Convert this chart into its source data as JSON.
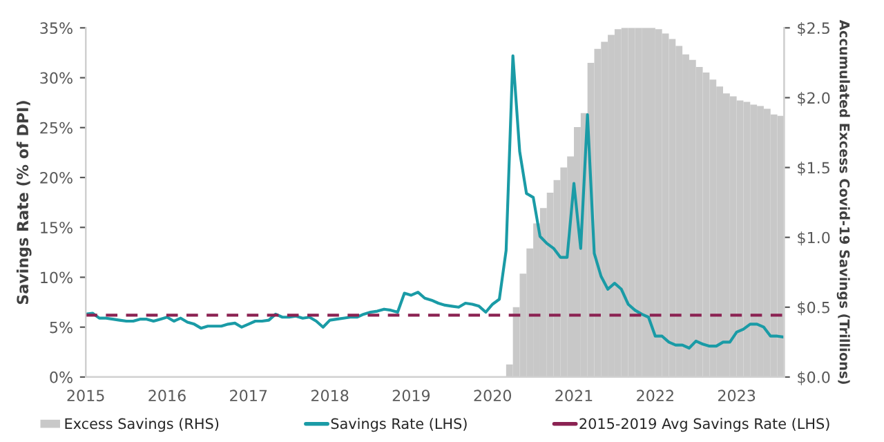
{
  "chart_data": {
    "type": "line",
    "ylabel": "Savings Rate (% of DPI)",
    "y2label": "Accumulated Excess Covid-19 Savings (Trillions)",
    "xlim": [
      "2015-01",
      "2023-08"
    ],
    "xticks": [
      "2015",
      "2016",
      "2017",
      "2018",
      "2019",
      "2020",
      "2021",
      "2022",
      "2023"
    ],
    "ylim": [
      0,
      35
    ],
    "yticks": [
      {
        "value": 0,
        "label": "0%"
      },
      {
        "value": 5,
        "label": "5%"
      },
      {
        "value": 10,
        "label": "10%"
      },
      {
        "value": 15,
        "label": "15%"
      },
      {
        "value": 20,
        "label": "20%"
      },
      {
        "value": 25,
        "label": "25%"
      },
      {
        "value": 30,
        "label": "30%"
      },
      {
        "value": 35,
        "label": "35%"
      }
    ],
    "y2lim": [
      0,
      2.5
    ],
    "y2ticks": [
      {
        "value": 0,
        "label": "$0.0"
      },
      {
        "value": 0.5,
        "label": "$0.5"
      },
      {
        "value": 1.0,
        "label": "$1.0"
      },
      {
        "value": 1.5,
        "label": "$1.5"
      },
      {
        "value": 2.0,
        "label": "$2.0"
      },
      {
        "value": 2.5,
        "label": "$2.5"
      }
    ],
    "grid": false,
    "legend": "bottom",
    "series": [
      {
        "name": "Excess Savings (RHS)",
        "type": "bar",
        "axis": "y2",
        "color": "#c8c8c8",
        "x": [
          "2020-03",
          "2020-04",
          "2020-05",
          "2020-06",
          "2020-07",
          "2020-08",
          "2020-09",
          "2020-10",
          "2020-11",
          "2020-12",
          "2021-01",
          "2021-02",
          "2021-03",
          "2021-04",
          "2021-05",
          "2021-06",
          "2021-07",
          "2021-08",
          "2021-09",
          "2021-10",
          "2021-11",
          "2021-12",
          "2022-01",
          "2022-02",
          "2022-03",
          "2022-04",
          "2022-05",
          "2022-06",
          "2022-07",
          "2022-08",
          "2022-09",
          "2022-10",
          "2022-11",
          "2022-12",
          "2023-01",
          "2023-02",
          "2023-03",
          "2023-04",
          "2023-05",
          "2023-06",
          "2023-07"
        ],
        "values": [
          0.09,
          0.5,
          0.74,
          0.92,
          1.1,
          1.21,
          1.32,
          1.41,
          1.5,
          1.58,
          1.79,
          1.89,
          2.25,
          2.35,
          2.4,
          2.45,
          2.49,
          2.5,
          2.5,
          2.5,
          2.5,
          2.5,
          2.49,
          2.46,
          2.42,
          2.37,
          2.31,
          2.27,
          2.22,
          2.18,
          2.13,
          2.08,
          2.03,
          2.01,
          1.98,
          1.97,
          1.95,
          1.94,
          1.92,
          1.88,
          1.87
        ]
      },
      {
        "name": "Savings Rate (LHS)",
        "color": "#1a9ba6",
        "x": [
          "2015-01",
          "2015-02",
          "2015-03",
          "2015-04",
          "2015-05",
          "2015-06",
          "2015-07",
          "2015-08",
          "2015-09",
          "2015-10",
          "2015-11",
          "2015-12",
          "2016-01",
          "2016-02",
          "2016-03",
          "2016-04",
          "2016-05",
          "2016-06",
          "2016-07",
          "2016-08",
          "2016-09",
          "2016-10",
          "2016-11",
          "2016-12",
          "2017-01",
          "2017-02",
          "2017-03",
          "2017-04",
          "2017-05",
          "2017-06",
          "2017-07",
          "2017-08",
          "2017-09",
          "2017-10",
          "2017-11",
          "2017-12",
          "2018-01",
          "2018-02",
          "2018-03",
          "2018-04",
          "2018-05",
          "2018-06",
          "2018-07",
          "2018-08",
          "2018-09",
          "2018-10",
          "2018-11",
          "2018-12",
          "2019-01",
          "2019-02",
          "2019-03",
          "2019-04",
          "2019-05",
          "2019-06",
          "2019-07",
          "2019-08",
          "2019-09",
          "2019-10",
          "2019-11",
          "2019-12",
          "2020-01",
          "2020-02",
          "2020-03",
          "2020-04",
          "2020-05",
          "2020-06",
          "2020-07",
          "2020-08",
          "2020-09",
          "2020-10",
          "2020-11",
          "2020-12",
          "2021-01",
          "2021-02",
          "2021-03",
          "2021-04",
          "2021-05",
          "2021-06",
          "2021-07",
          "2021-08",
          "2021-09",
          "2021-10",
          "2021-11",
          "2021-12",
          "2022-01",
          "2022-02",
          "2022-03",
          "2022-04",
          "2022-05",
          "2022-06",
          "2022-07",
          "2022-08",
          "2022-09",
          "2022-10",
          "2022-11",
          "2022-12",
          "2023-01",
          "2023-02",
          "2023-03",
          "2023-04",
          "2023-05",
          "2023-06",
          "2023-07",
          "2023-08"
        ],
        "values": [
          6.3,
          6.4,
          5.9,
          5.9,
          5.8,
          5.7,
          5.6,
          5.6,
          5.8,
          5.8,
          5.6,
          5.8,
          6.0,
          5.6,
          5.9,
          5.5,
          5.3,
          4.9,
          5.1,
          5.1,
          5.1,
          5.3,
          5.4,
          5.0,
          5.3,
          5.6,
          5.6,
          5.7,
          6.3,
          6.0,
          6.0,
          6.1,
          5.9,
          6.0,
          5.6,
          5.0,
          5.7,
          5.8,
          5.9,
          6.0,
          6.0,
          6.3,
          6.5,
          6.6,
          6.8,
          6.7,
          6.5,
          8.4,
          8.2,
          8.5,
          7.9,
          7.7,
          7.4,
          7.2,
          7.1,
          7.0,
          7.4,
          7.3,
          7.1,
          6.5,
          7.3,
          7.8,
          12.7,
          32.2,
          22.6,
          18.4,
          18.0,
          14.1,
          13.4,
          12.9,
          12.0,
          12.0,
          19.4,
          12.9,
          26.3,
          12.4,
          10.1,
          8.8,
          9.4,
          8.8,
          7.3,
          6.7,
          6.3,
          6.0,
          4.1,
          4.1,
          3.5,
          3.2,
          3.2,
          2.9,
          3.6,
          3.3,
          3.1,
          3.1,
          3.5,
          3.5,
          4.5,
          4.8,
          5.3,
          5.3,
          5.0,
          4.1,
          4.1,
          4.0
        ]
      }
    ],
    "ref_lines": [
      {
        "axis": "y",
        "value": 6.2,
        "label": "2015-2019 Avg Savings Rate (LHS)",
        "color": "#8b2252",
        "line_style": "dashed"
      }
    ]
  }
}
